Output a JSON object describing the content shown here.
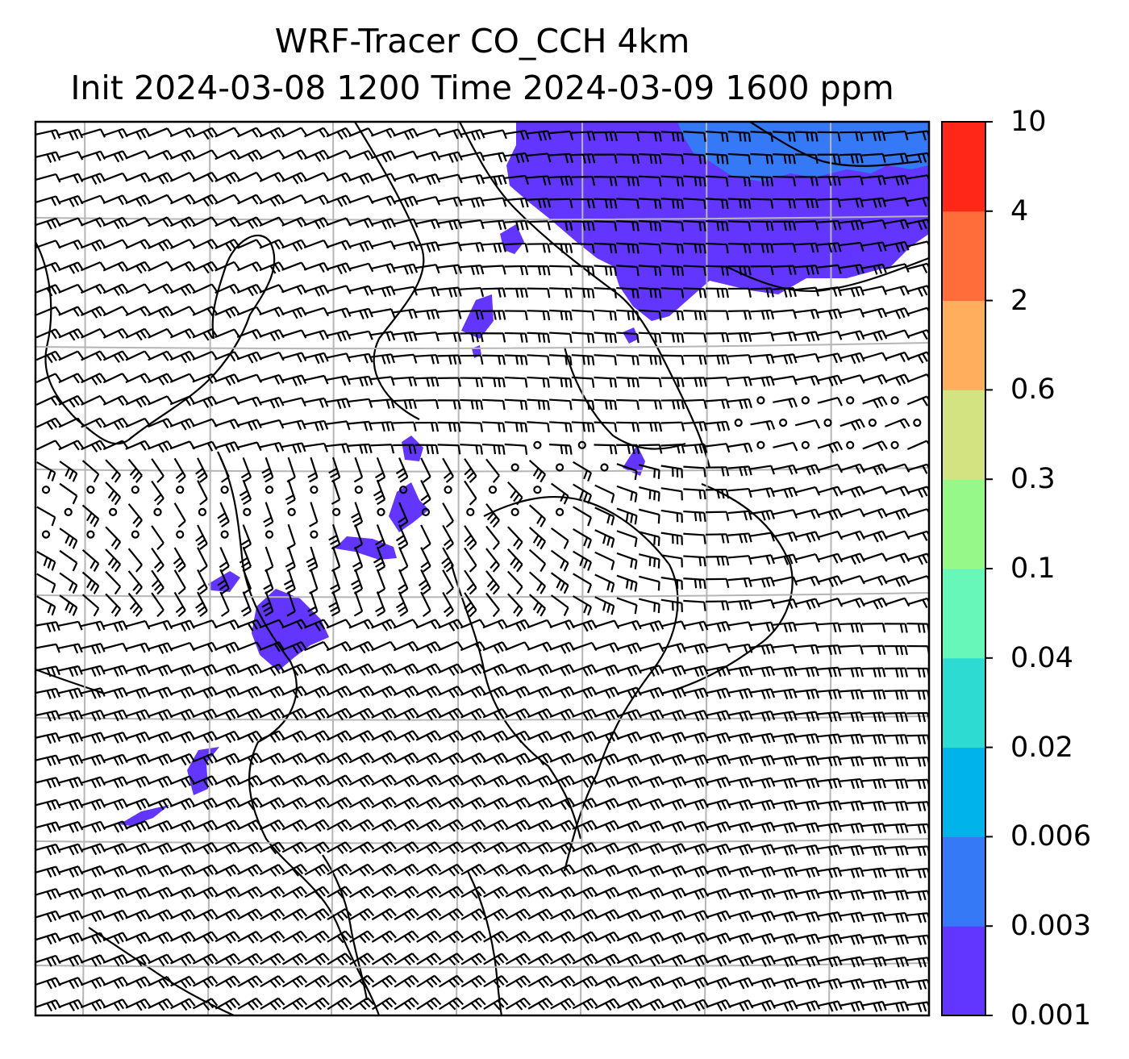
{
  "title": {
    "line1": "WRF-Tracer CO_CCH 4km",
    "line2": "Init 2024-03-08 1200 Time 2024-03-09 1600 ppm"
  },
  "colorbar": {
    "levels": [
      "0.001",
      "0.003",
      "0.006",
      "0.02",
      "0.04",
      "0.1",
      "0.3",
      "0.6",
      "2",
      "4",
      "10"
    ],
    "colors": [
      "#6236ff",
      "#3579f6",
      "#00b3eb",
      "#2edbd2",
      "#66f7b9",
      "#97f88a",
      "#d3e381",
      "#ffae5e",
      "#ff6e3a",
      "#ff2717"
    ]
  },
  "map": {
    "fill_colors": {
      "lowest": "#6236ff",
      "second": "#3579f6"
    },
    "gridline_color": "#b5b5b5",
    "coastline_color": "#000000",
    "wind_barb_color": "#000000"
  }
}
